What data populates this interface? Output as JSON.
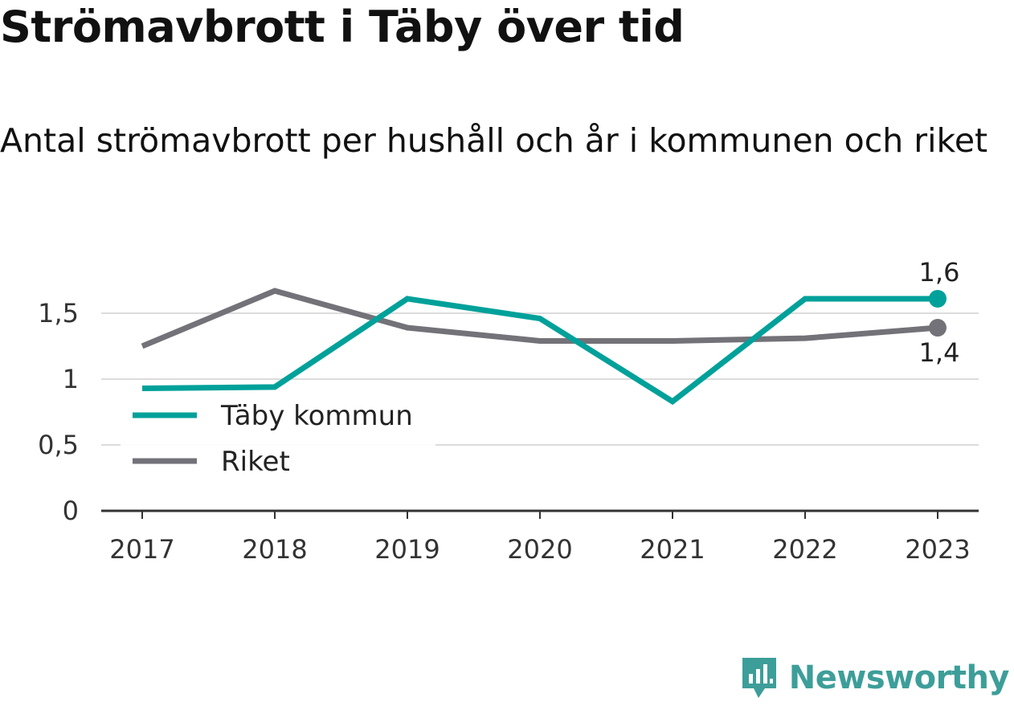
{
  "header": {
    "title": "Strömavbrott i Täby över tid",
    "subtitle": "Antal strömavbrott per hushåll och år i kommunen och riket"
  },
  "brand": {
    "name": "Newsworthy",
    "icon": "newsworthy-logo-icon",
    "color": "#3d9e99"
  },
  "chart_data": {
    "type": "line",
    "x": [
      "2017",
      "2018",
      "2019",
      "2020",
      "2021",
      "2022",
      "2023"
    ],
    "ylim": [
      0,
      1.9
    ],
    "yticks": [
      0,
      0.5,
      1,
      1.5
    ],
    "ytick_labels": [
      "0",
      "0,5",
      "1",
      "1,5"
    ],
    "grid": true,
    "legend_position": "bottom-left",
    "series": [
      {
        "name": "Täby kommun",
        "color": "#00a19a",
        "values": [
          0.93,
          0.94,
          1.61,
          1.46,
          0.83,
          1.61,
          1.61
        ],
        "end_label": "1,6"
      },
      {
        "name": "Riket",
        "color": "#737279",
        "values": [
          1.25,
          1.67,
          1.39,
          1.29,
          1.29,
          1.31,
          1.39
        ],
        "end_label": "1,4"
      }
    ]
  }
}
